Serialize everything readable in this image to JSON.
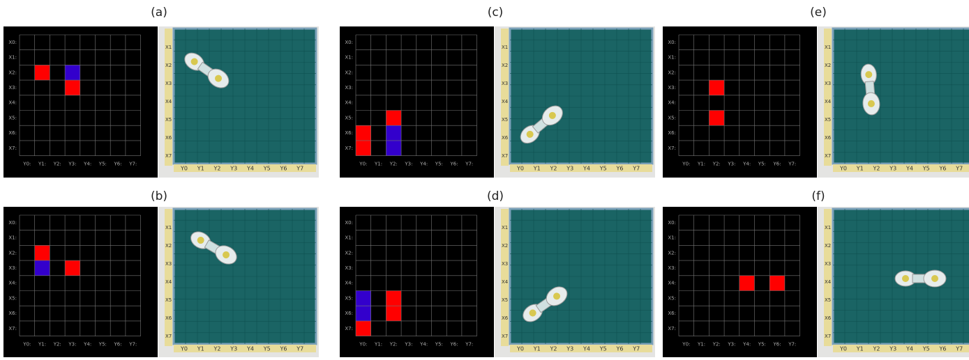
{
  "grid": {
    "row_labels": [
      "X0:",
      "X1:",
      "X2:",
      "X3:",
      "X4:",
      "X5:",
      "X6:",
      "X7:"
    ],
    "column_labels": [
      "Y0:",
      "Y1:",
      "Y2:",
      "Y3:",
      "Y4:",
      "Y5:",
      "Y6:",
      "Y7:"
    ]
  },
  "photo_labels": {
    "columns": [
      "Y0",
      "Y1",
      "Y2",
      "Y3",
      "Y4",
      "Y5",
      "Y6",
      "Y7"
    ],
    "rows": [
      "X1",
      "X2",
      "X3",
      "X4",
      "X5",
      "X6",
      "X7"
    ]
  },
  "panels": [
    {
      "label": "(a)",
      "cells": [
        {
          "row": 2,
          "col": 1,
          "color": "#ff0000"
        },
        {
          "row": 2,
          "col": 3,
          "color": "#3300cc"
        },
        {
          "row": 3,
          "col": 3,
          "color": "#ff0000"
        }
      ]
    },
    {
      "label": "(b)",
      "cells": [
        {
          "row": 2,
          "col": 1,
          "color": "#ff0000"
        },
        {
          "row": 3,
          "col": 1,
          "color": "#3300cc"
        },
        {
          "row": 3,
          "col": 3,
          "color": "#ff0000"
        }
      ]
    },
    {
      "label": "(c)",
      "cells": [
        {
          "row": 6,
          "col": 0,
          "color": "#ff0000"
        },
        {
          "row": 7,
          "col": 0,
          "color": "#ff0000"
        },
        {
          "row": 5,
          "col": 2,
          "color": "#ff0000"
        },
        {
          "row": 6,
          "col": 2,
          "color": "#3300cc"
        },
        {
          "row": 7,
          "col": 2,
          "color": "#3300cc"
        }
      ]
    },
    {
      "label": "(d)",
      "cells": [
        {
          "row": 5,
          "col": 0,
          "color": "#3300cc"
        },
        {
          "row": 6,
          "col": 0,
          "color": "#3300cc"
        },
        {
          "row": 7,
          "col": 0,
          "color": "#ff0000"
        },
        {
          "row": 5,
          "col": 2,
          "color": "#ff0000"
        },
        {
          "row": 6,
          "col": 2,
          "color": "#ff0000"
        }
      ]
    },
    {
      "label": "(e)",
      "cells": [
        {
          "row": 3,
          "col": 2,
          "color": "#ff0000"
        },
        {
          "row": 5,
          "col": 2,
          "color": "#ff0000"
        }
      ]
    },
    {
      "label": "(f)",
      "cells": [
        {
          "row": 4,
          "col": 4,
          "color": "#ff0000"
        },
        {
          "row": 4,
          "col": 6,
          "color": "#ff0000"
        }
      ]
    }
  ]
}
